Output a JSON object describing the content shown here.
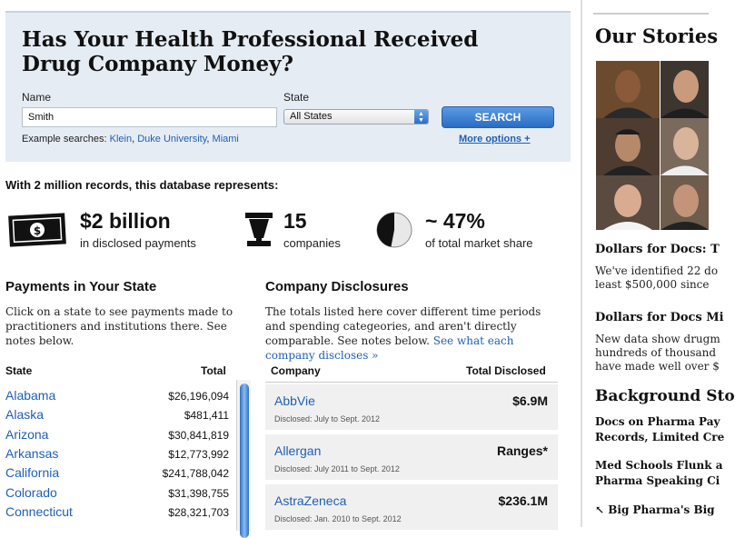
{
  "search": {
    "title": "Has Your Health Professional Received Drug Company Money?",
    "name_label": "Name",
    "name_value": "Smith",
    "state_label": "State",
    "state_value": "All States",
    "search_button": "SEARCH",
    "examples_prefix": "Example searches:",
    "examples": [
      "Klein",
      "Duke University",
      "Miami"
    ],
    "more_options": "More options +"
  },
  "stats": {
    "heading": "With 2 million records, this database represents:",
    "items": [
      {
        "value": "$2 billion",
        "label": "in disclosed payments",
        "icon": "money-icon"
      },
      {
        "value": "15",
        "label": "companies",
        "icon": "mortar-pestle-icon"
      },
      {
        "value": "~ 47%",
        "label": "of total market share",
        "icon": "pie-icon"
      }
    ]
  },
  "states_section": {
    "heading": "Payments in Your State",
    "description": "Click on a state to see payments made to practitioners and institutions there. See notes below.",
    "col_state": "State",
    "col_total": "Total",
    "rows": [
      {
        "state": "Alabama",
        "total": "$26,196,094"
      },
      {
        "state": "Alaska",
        "total": "$481,411"
      },
      {
        "state": "Arizona",
        "total": "$30,841,819"
      },
      {
        "state": "Arkansas",
        "total": "$12,773,992"
      },
      {
        "state": "California",
        "total": "$241,788,042"
      },
      {
        "state": "Colorado",
        "total": "$31,398,755"
      },
      {
        "state": "Connecticut",
        "total": "$28,321,703"
      }
    ]
  },
  "company_section": {
    "heading": "Company Disclosures",
    "description": "The totals listed here cover different time periods and spending categeories, and aren't directly comparable. See notes below.",
    "description_link": "See what each company discloses »",
    "col_company": "Company",
    "col_total": "Total Disclosed",
    "rows": [
      {
        "company": "AbbVie",
        "amount": "$6.9M",
        "disclosed": "Disclosed: July to Sept. 2012"
      },
      {
        "company": "Allergan",
        "amount": "Ranges*",
        "disclosed": "Disclosed: July 2011 to Sept. 2012"
      },
      {
        "company": "AstraZeneca",
        "amount": "$236.1M",
        "disclosed": "Disclosed: Jan. 2010 to Sept. 2012"
      }
    ]
  },
  "sidebar": {
    "title": "Our Stories",
    "stories": [
      {
        "headline": "Dollars for Docs: T",
        "lines": [
          "We've identified 22 do",
          "least $500,000 since"
        ]
      },
      {
        "headline": "Dollars for Docs Mi",
        "lines": [
          "New data show drugm",
          "hundreds of thousand",
          "have made well over $"
        ]
      }
    ],
    "background_heading": "Background Sto",
    "background_links": [
      [
        "Docs on Pharma Pay",
        "Records, Limited Cre"
      ],
      [
        "Med Schools Flunk a",
        "Pharma Speaking Ci"
      ],
      [
        "Big Pharma's Big"
      ]
    ]
  },
  "colors": {
    "accent_blue": "#1f5fb5",
    "search_panel_bg": "#e6ecf4",
    "button_blue": "#2a6cc2"
  }
}
